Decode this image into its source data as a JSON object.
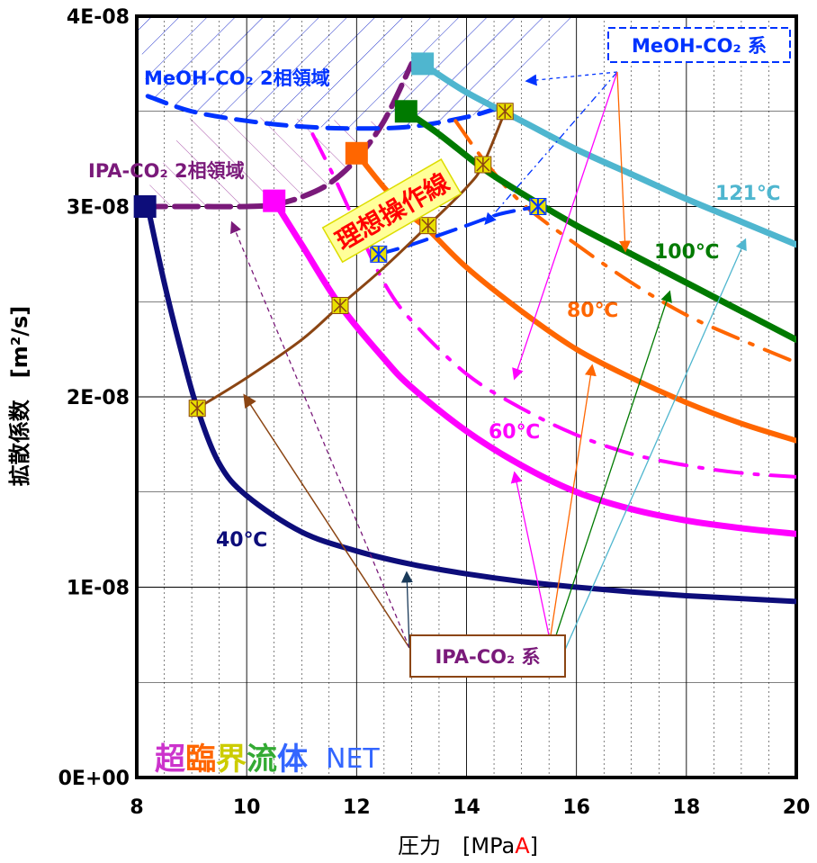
{
  "chart_data": {
    "type": "line",
    "xlabel": "圧力 [MPaA]",
    "xlabel_main": "圧力　[MPa",
    "xlabel_red": "A",
    "xlabel_close": "]",
    "ylabel": "拡散係数　[m²/s]",
    "xlim": [
      8,
      20
    ],
    "ylim": [
      0,
      4e-08
    ],
    "x_ticks": [
      8,
      10,
      12,
      14,
      16,
      18,
      20
    ],
    "x_tick_labels": [
      "8",
      "10",
      "12",
      "14",
      "16",
      "18",
      "20"
    ],
    "y_ticks": [
      0,
      1e-08,
      2e-08,
      3e-08,
      4e-08
    ],
    "y_tick_labels": [
      "0E+00",
      "1E-08",
      "2E-08",
      "3E-08",
      "4E-08"
    ],
    "grid": true,
    "series": [
      {
        "name": "40℃",
        "system": "IPA-CO2",
        "color": "#0d0d7a",
        "x": [
          8.2,
          8.5,
          8.8,
          9.1,
          9.5,
          10,
          11,
          12,
          13,
          14,
          15,
          16,
          17,
          18,
          19,
          20
        ],
        "y": [
          3e-08,
          2.6e-08,
          2.25e-08,
          1.94e-08,
          1.65e-08,
          1.48e-08,
          1.29e-08,
          1.19e-08,
          1.12e-08,
          1.07e-08,
          1.03e-08,
          1e-08,
          9.75e-09,
          9.55e-09,
          9.4e-09,
          9.25e-09
        ]
      },
      {
        "name": "60℃",
        "system": "IPA-CO2",
        "color": "#ff00ff",
        "x": [
          10.5,
          11,
          11.7,
          12.5,
          13,
          14,
          15,
          16,
          17,
          18,
          19,
          20
        ],
        "y": [
          3.03e-08,
          2.8e-08,
          2.48e-08,
          2.2e-08,
          2.05e-08,
          1.82e-08,
          1.64e-08,
          1.5e-08,
          1.41e-08,
          1.35e-08,
          1.31e-08,
          1.28e-08
        ]
      },
      {
        "name": "80℃",
        "system": "IPA-CO2",
        "color": "#ff6600",
        "x": [
          12.0,
          12.5,
          13,
          13.3,
          14,
          15,
          16,
          17,
          18,
          19,
          20
        ],
        "y": [
          3.28e-08,
          3.1e-08,
          2.95e-08,
          2.88e-08,
          2.68e-08,
          2.45e-08,
          2.25e-08,
          2.1e-08,
          1.97e-08,
          1.86e-08,
          1.77e-08
        ]
      },
      {
        "name": "100℃",
        "system": "IPA-CO2",
        "color": "#007a00",
        "x": [
          12.9,
          13.5,
          14.3,
          15,
          16,
          17,
          18,
          19,
          20
        ],
        "y": [
          3.5e-08,
          3.38e-08,
          3.2e-08,
          3.07e-08,
          2.9e-08,
          2.75e-08,
          2.6e-08,
          2.45e-08,
          2.3e-08
        ]
      },
      {
        "name": "121℃",
        "system": "IPA-CO2",
        "color": "#4fb6cf",
        "x": [
          13.2,
          14,
          15,
          16,
          17,
          18,
          19,
          20
        ],
        "y": [
          3.75e-08,
          3.6e-08,
          3.45e-08,
          3.3e-08,
          3.17e-08,
          3.04e-08,
          2.92e-08,
          2.8e-08
        ]
      },
      {
        "name": "MeOH-CO2 60℃",
        "system": "MeOH-CO2",
        "color": "#ff00ff",
        "x": [
          11.2,
          11.6,
          12,
          12.5,
          13,
          14,
          15,
          16,
          17,
          18,
          19,
          20
        ],
        "y": [
          3.38e-08,
          3.15e-08,
          2.9e-08,
          2.6e-08,
          2.4e-08,
          2.12e-08,
          1.94e-08,
          1.8e-08,
          1.7e-08,
          1.64e-08,
          1.6e-08,
          1.58e-08
        ]
      },
      {
        "name": "MeOH-CO2 80℃",
        "system": "MeOH-CO2",
        "color": "#ff6600",
        "x": [
          13.8,
          14.3,
          15,
          16,
          17,
          18,
          19,
          20
        ],
        "y": [
          3.45e-08,
          3.25e-08,
          3.02e-08,
          2.8e-08,
          2.6e-08,
          2.43e-08,
          2.3e-08,
          2.18e-08
        ]
      },
      {
        "name": "IPA-CO2 2相領域",
        "system": "IPA-CO2",
        "color": "#7a1a7a",
        "x": [
          8.1,
          9,
          10,
          10.5,
          11,
          11.5,
          12,
          12.5,
          13
        ],
        "y": [
          3e-08,
          3e-08,
          3e-08,
          3.01e-08,
          3.05e-08,
          3.12e-08,
          3.25e-08,
          3.45e-08,
          3.75e-08
        ]
      },
      {
        "name": "MeOH-CO2 2相領域",
        "system": "MeOH-CO2",
        "color": "#0033ff",
        "x": [
          8.2,
          9,
          10,
          11,
          12,
          13,
          14,
          14.6
        ],
        "y": [
          3.58e-08,
          3.5e-08,
          3.45e-08,
          3.42e-08,
          3.41e-08,
          3.42e-08,
          3.47e-08,
          3.52e-08
        ]
      },
      {
        "name": "MeOH-CO2 ideal",
        "system": "MeOH-CO2",
        "color": "#0033ff",
        "x": [
          12.4,
          13,
          14,
          14.6,
          15.3
        ],
        "y": [
          2.75e-08,
          2.8e-08,
          2.9e-08,
          2.96e-08,
          3e-08
        ]
      },
      {
        "name": "理想操作線",
        "system": "IPA-CO2",
        "color": "#8b4513",
        "x": [
          9.1,
          10,
          11,
          11.7,
          12.5,
          13.3,
          14,
          14.3,
          14.7
        ],
        "y": [
          1.94e-08,
          2.1e-08,
          2.3e-08,
          2.48e-08,
          2.68e-08,
          2.9e-08,
          3.1e-08,
          3.22e-08,
          3.5e-08
        ]
      }
    ],
    "markers": {
      "ideal_points": [
        {
          "x": 9.1,
          "y": 1.94e-08
        },
        {
          "x": 11.7,
          "y": 2.48e-08
        },
        {
          "x": 13.3,
          "y": 2.9e-08
        },
        {
          "x": 14.3,
          "y": 3.22e-08
        },
        {
          "x": 14.7,
          "y": 3.5e-08
        }
      ],
      "meoh_points": [
        {
          "x": 12.4,
          "y": 2.75e-08
        },
        {
          "x": 15.3,
          "y": 3e-08
        }
      ],
      "squares": [
        {
          "x": 8.15,
          "y": 3e-08,
          "color": "#0d0d7a"
        },
        {
          "x": 10.5,
          "y": 3.03e-08,
          "color": "#ff00ff"
        },
        {
          "x": 12.0,
          "y": 3.28e-08,
          "color": "#ff6600"
        },
        {
          "x": 12.9,
          "y": 3.5e-08,
          "color": "#007a00"
        },
        {
          "x": 13.2,
          "y": 3.75e-08,
          "color": "#4fb6cf"
        }
      ]
    },
    "annotations": {
      "label_40": "40℃",
      "label_60": "60℃",
      "label_80": "80℃",
      "label_100": "100℃",
      "label_121": "121℃",
      "meoh_region": "MeOH-CO₂ 2相領域",
      "ipa_region": "IPA-CO₂ 2相領域",
      "ideal_line": "理想操作線",
      "meoh_system": "MeOH-CO₂ 系",
      "ipa_system": "IPA-CO₂ 系",
      "watermark": [
        "超",
        "臨",
        "界",
        "流",
        "体"
      ],
      "watermark_net": "NET"
    },
    "colors": {
      "axis": "#000000",
      "grid": "#000000",
      "hatch_meoh": "#2233cc",
      "hatch_ipa": "#993399",
      "ideal_highlight_bg": "#ffff99",
      "ideal_text": "#ff0000",
      "watermark": [
        "#cc33cc",
        "#ff6600",
        "#cccc00",
        "#33aa33",
        "#3366ff"
      ]
    }
  }
}
